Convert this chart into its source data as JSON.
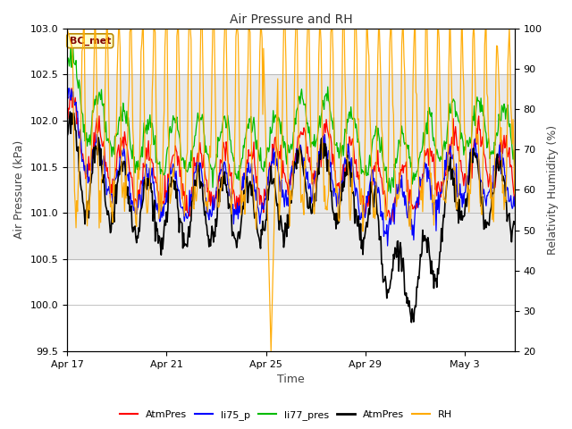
{
  "title": "Air Pressure and RH",
  "xlabel": "Time",
  "ylabel_left": "Air Pressure (kPa)",
  "ylabel_right": "Relativity Humidity (%)",
  "ylim_left": [
    99.5,
    103.0
  ],
  "ylim_right": [
    20,
    100
  ],
  "yticks_left": [
    99.5,
    100.0,
    100.5,
    101.0,
    101.5,
    102.0,
    102.5,
    103.0
  ],
  "yticks_right": [
    20,
    30,
    40,
    50,
    60,
    70,
    80,
    90,
    100
  ],
  "xtick_labels": [
    "Apr 17",
    "Apr 21",
    "Apr 25",
    "Apr 29",
    "May 3"
  ],
  "xtick_positions": [
    0,
    4,
    8,
    12,
    16
  ],
  "xlim": [
    0,
    18
  ],
  "colors": {
    "AtmPres_red": "#ff0000",
    "li75_p": "#0000ff",
    "li77_pres": "#00bb00",
    "AtmPres_black": "#000000",
    "RH": "#ffaa00"
  },
  "legend_labels": [
    "AtmPres",
    "li75_p",
    "li77_pres",
    "AtmPres",
    "RH"
  ],
  "legend_colors": [
    "#ff0000",
    "#0000ff",
    "#00bb00",
    "#000000",
    "#ffaa00"
  ],
  "station_label": "BC_met",
  "background_color": "#ffffff",
  "shaded_region": [
    100.5,
    102.5
  ],
  "n_points": 600,
  "figsize": [
    6.4,
    4.8
  ],
  "dpi": 100
}
